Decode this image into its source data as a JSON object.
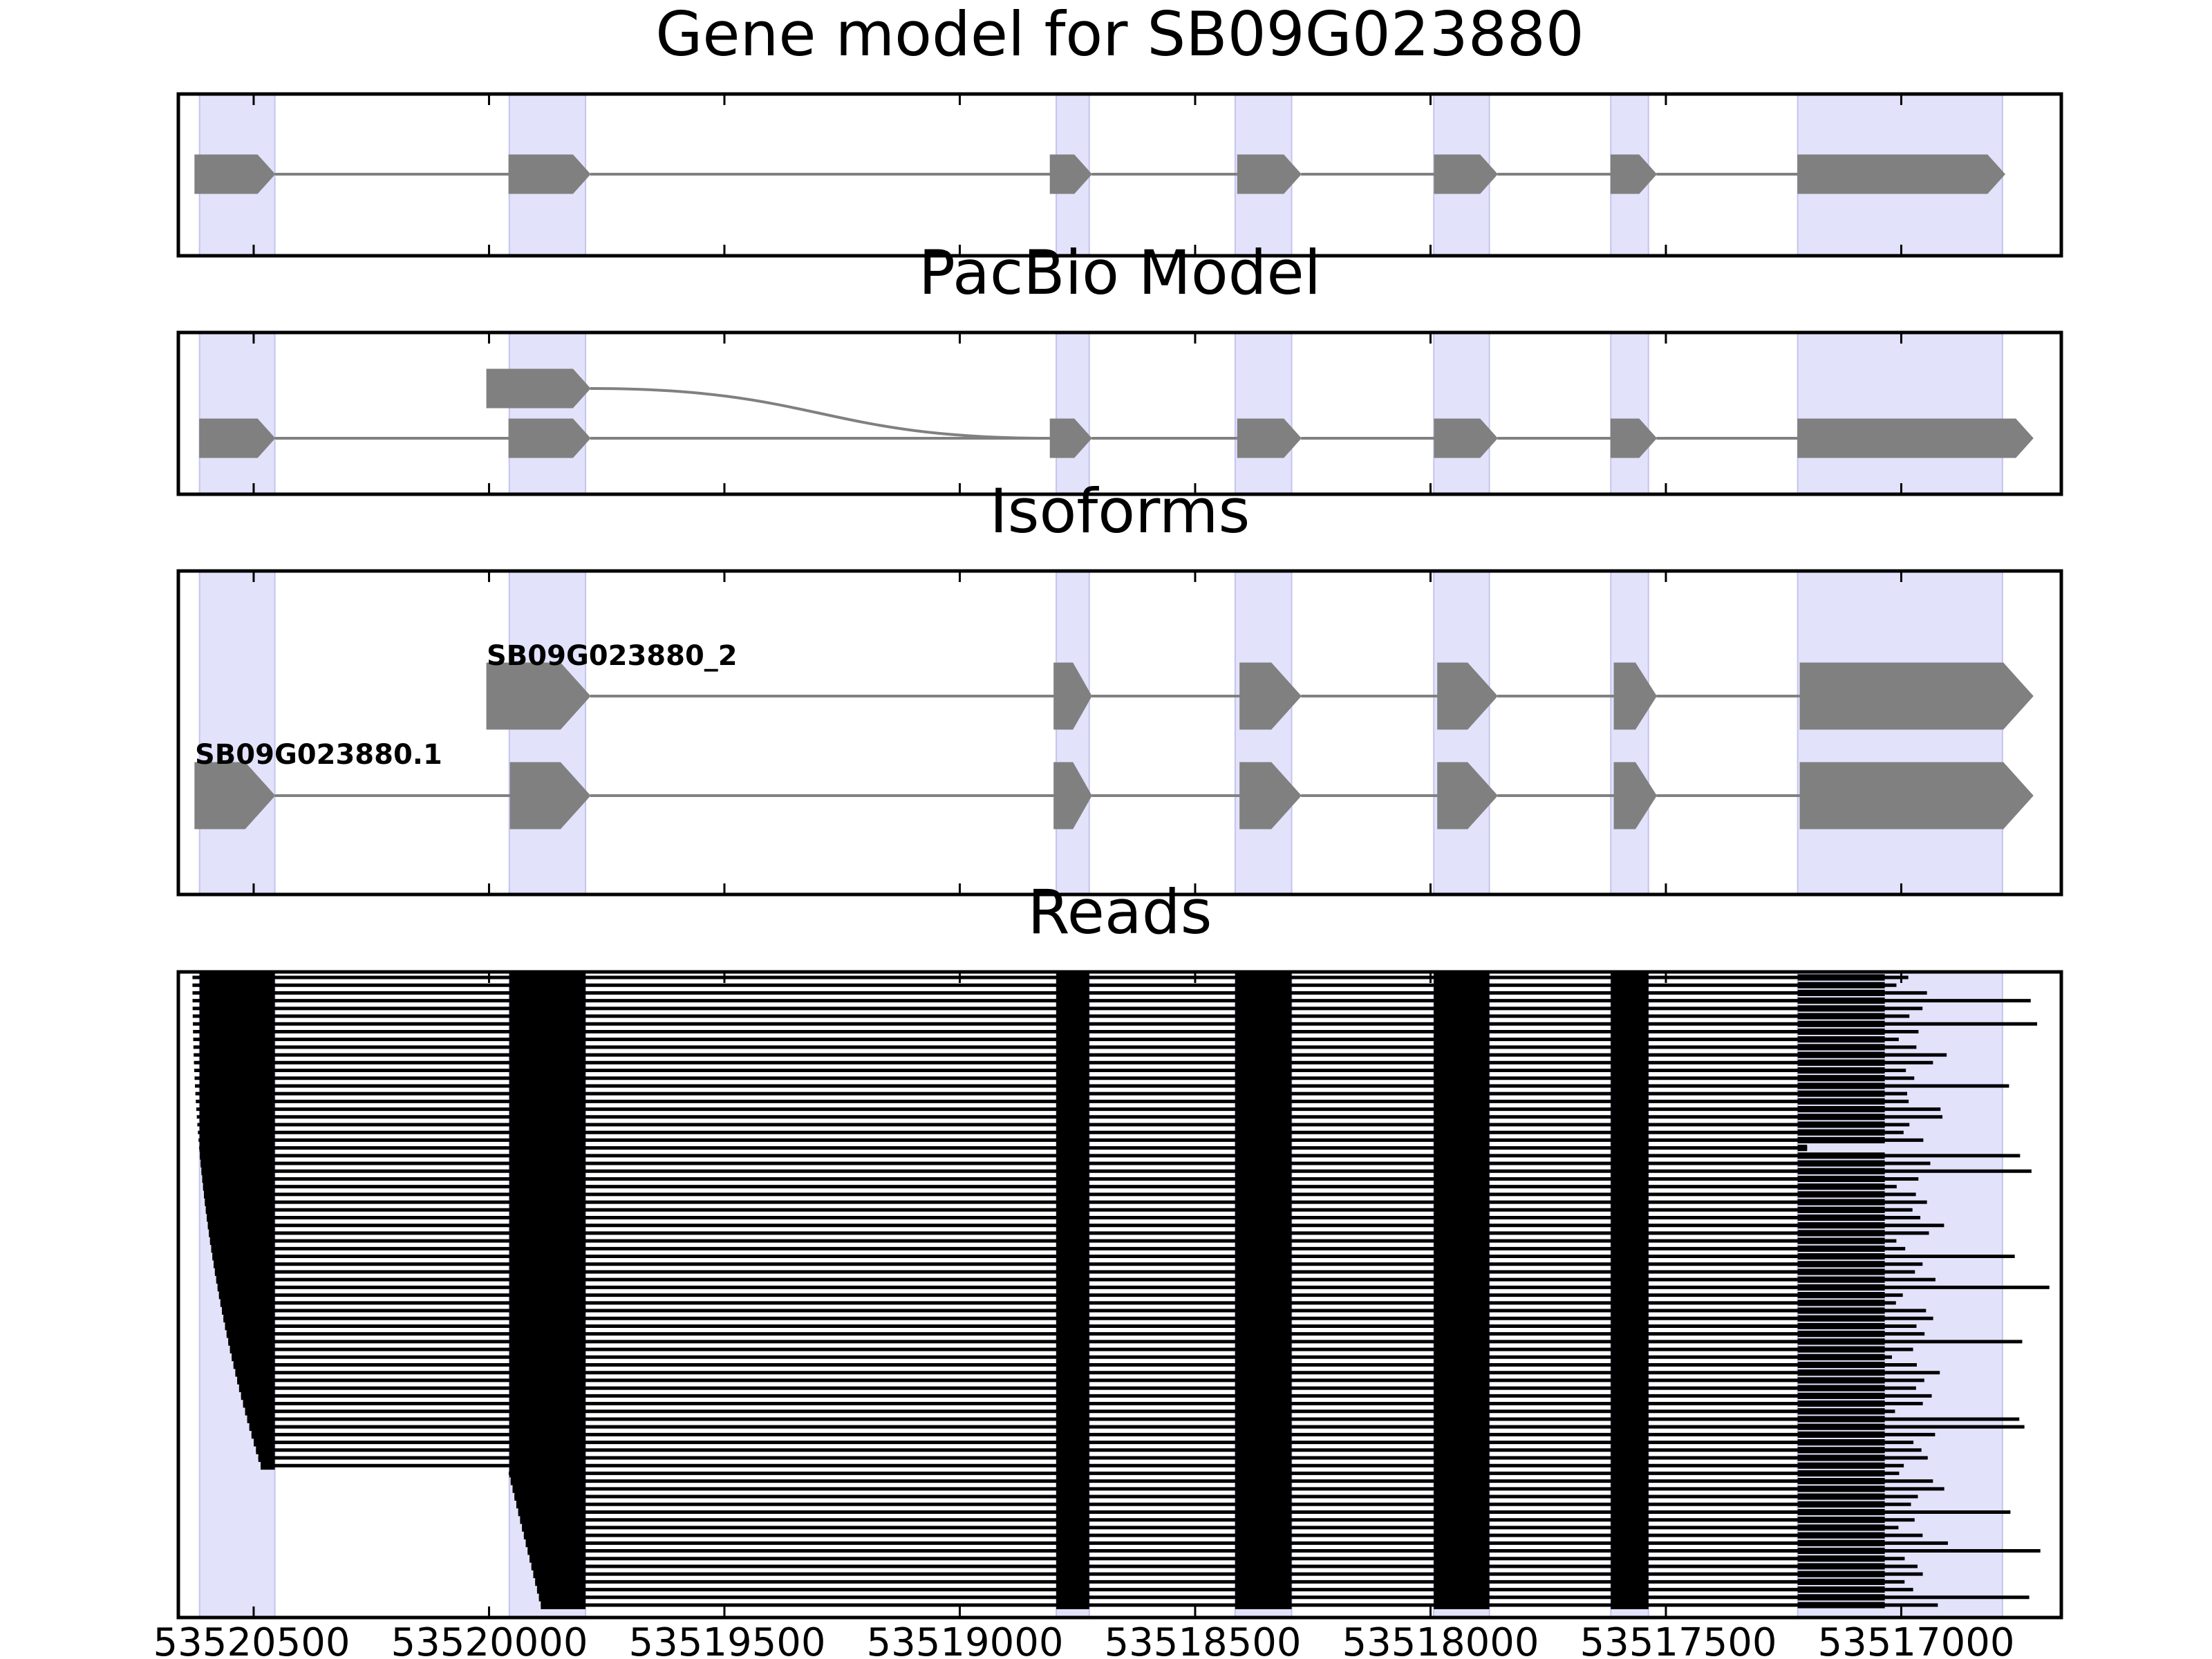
{
  "chart_data": {
    "type": "gene-model-track",
    "x_tick_labels": [
      "53520500",
      "53520000",
      "53519500",
      "53519000",
      "53518500",
      "53518000",
      "53517500",
      "53517000"
    ],
    "exon_bands": [
      [
        53520615,
        53520455
      ],
      [
        53519957,
        53519795
      ],
      [
        53518795,
        53518725
      ],
      [
        53518415,
        53518295
      ],
      [
        53517993,
        53517875
      ],
      [
        53517617,
        53517537
      ],
      [
        53517220,
        53516785
      ]
    ],
    "panels": [
      {
        "title": "Gene model for SB09G023880",
        "tracks": [
          {
            "label": "",
            "exons": [
              [
                53520625,
                53520455
              ],
              [
                53519958,
                53519785
              ],
              [
                53518808,
                53518720
              ],
              [
                53518410,
                53518275
              ],
              [
                53517992,
                53517858
              ],
              [
                53517617,
                53517520
              ],
              [
                53517220,
                53516780
              ]
            ]
          }
        ]
      },
      {
        "title": "PacBio Model",
        "tracks": [
          {
            "label": "",
            "row": 0,
            "exons": [
              [
                53520005,
                53519785
              ]
            ],
            "curve_to": 53518808
          },
          {
            "label": "",
            "row": 1,
            "exons": [
              [
                53520615,
                53520455
              ],
              [
                53519958,
                53519785
              ],
              [
                53518808,
                53518720
              ],
              [
                53518410,
                53518275
              ],
              [
                53517992,
                53517858
              ],
              [
                53517617,
                53517520
              ],
              [
                53517220,
                53516720
              ]
            ]
          }
        ]
      },
      {
        "title": "Isoforms",
        "tracks": [
          {
            "label": "SB09G023880_2",
            "row": 0,
            "exons": [
              [
                53520005,
                53519785
              ],
              [
                53518800,
                53518720
              ],
              [
                53518405,
                53518275
              ],
              [
                53517985,
                53517858
              ],
              [
                53517610,
                53517520
              ],
              [
                53517215,
                53516720
              ]
            ]
          },
          {
            "label": "SB09G023880.1",
            "row": 1,
            "exons": [
              [
                53520625,
                53520455
              ],
              [
                53519955,
                53519785
              ],
              [
                53518800,
                53518720
              ],
              [
                53518405,
                53518275
              ],
              [
                53517985,
                53517858
              ],
              [
                53517610,
                53517520
              ],
              [
                53517215,
                53516720
              ]
            ]
          }
        ]
      },
      {
        "title": "Reads",
        "read_count": 82,
        "reads_long_count": 64
      }
    ],
    "xlim": [
      53520660,
      53516660
    ],
    "colors": {
      "exon": "#808080",
      "band": "#e2e2fb",
      "read": "#000000",
      "frame": "#000000"
    }
  }
}
